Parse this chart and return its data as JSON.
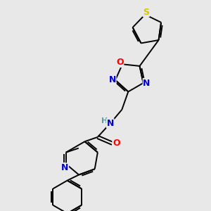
{
  "background_color": "#e8e8e8",
  "bond_color": "#000000",
  "atom_colors": {
    "N": "#0000cd",
    "O": "#ff0000",
    "S": "#cccc00",
    "C": "#000000",
    "H": "#5f9ea0"
  },
  "font_size": 8,
  "figsize": [
    3.0,
    3.0
  ],
  "dpi": 100
}
